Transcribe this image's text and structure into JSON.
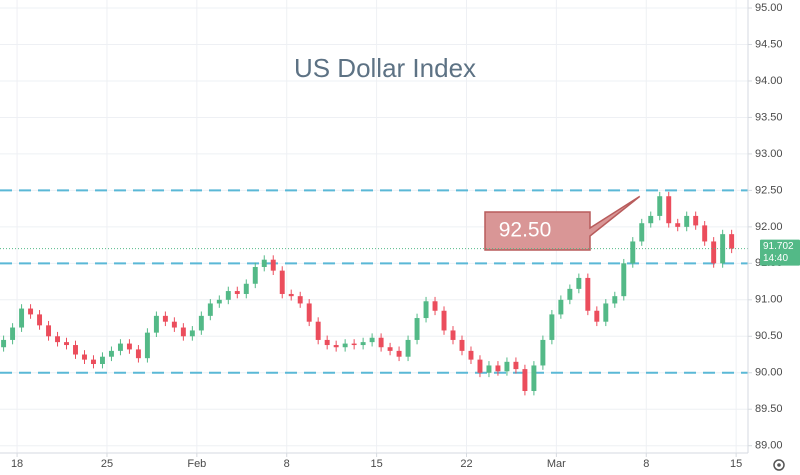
{
  "chart_data": {
    "type": "candlestick",
    "title": "US Dollar Index",
    "x": [
      -0.75,
      -0.25,
      0.25,
      0.75,
      1.25,
      1.75,
      2.25,
      2.75,
      3.25,
      3.75,
      4.25,
      4.75,
      5.25,
      5.75,
      6.25,
      6.75,
      7.25,
      7.75,
      8.25,
      8.75,
      9.25,
      9.75,
      10.25,
      10.75,
      11.25,
      11.75,
      12.25,
      12.75,
      13.25,
      13.75,
      14.25,
      14.75,
      15.25,
      15.75,
      16.25,
      16.75,
      17.25,
      17.75,
      18.25,
      18.75,
      19.25,
      19.75,
      20.25,
      20.75,
      21.25,
      21.75,
      22.25,
      22.75,
      23.25,
      23.75,
      24.25,
      24.75,
      25.25,
      25.75,
      26.25,
      26.75,
      27.25,
      27.75,
      28.25,
      28.75,
      29.25,
      29.75,
      30.25,
      30.75,
      31.25,
      31.75,
      32.25,
      32.75,
      33.25,
      33.75,
      34.25,
      34.75,
      35.25,
      35.75,
      36.25,
      36.75,
      37.25,
      37.75,
      38.25,
      38.75,
      39.25,
      39.75
    ],
    "open": [
      90.35,
      90.45,
      90.62,
      90.88,
      90.8,
      90.65,
      90.5,
      90.42,
      90.38,
      90.25,
      90.18,
      90.12,
      90.22,
      90.3,
      90.4,
      90.32,
      90.2,
      90.55,
      90.78,
      90.7,
      90.62,
      90.5,
      90.58,
      90.78,
      90.95,
      91.0,
      91.12,
      91.08,
      91.22,
      91.45,
      91.55,
      91.4,
      91.08,
      91.05,
      90.95,
      90.7,
      90.45,
      90.38,
      90.35,
      90.4,
      90.38,
      90.42,
      90.48,
      90.35,
      90.3,
      90.22,
      90.45,
      90.75,
      90.98,
      90.85,
      90.58,
      90.45,
      90.3,
      90.18,
      90.0,
      90.1,
      90.02,
      90.15,
      90.05,
      89.75,
      90.1,
      90.45,
      90.8,
      91.0,
      91.15,
      91.3,
      90.85,
      90.7,
      90.95,
      91.05,
      91.5,
      91.8,
      92.05,
      92.15,
      92.42,
      92.05,
      92.0,
      92.15,
      92.02,
      91.8,
      91.5,
      91.9
    ],
    "high": [
      90.51,
      90.68,
      90.94,
      90.94,
      90.86,
      90.71,
      90.56,
      90.48,
      90.44,
      90.31,
      90.24,
      90.28,
      90.36,
      90.46,
      90.46,
      90.38,
      90.61,
      90.84,
      90.84,
      90.76,
      90.68,
      90.64,
      90.84,
      91.01,
      91.06,
      91.18,
      91.18,
      91.28,
      91.51,
      91.61,
      91.61,
      91.46,
      91.14,
      91.11,
      91.01,
      90.76,
      90.51,
      90.44,
      90.46,
      90.46,
      90.48,
      90.54,
      90.54,
      90.41,
      90.36,
      90.51,
      90.81,
      91.04,
      91.04,
      90.91,
      90.64,
      90.51,
      90.36,
      90.24,
      90.16,
      90.16,
      90.21,
      90.21,
      90.11,
      90.16,
      90.51,
      90.86,
      91.06,
      91.21,
      91.36,
      91.36,
      90.91,
      91.01,
      91.11,
      91.56,
      91.86,
      92.11,
      92.21,
      92.48,
      92.48,
      92.11,
      92.21,
      92.21,
      92.08,
      91.86,
      91.96,
      91.96
    ],
    "low": [
      90.29,
      90.39,
      90.56,
      90.74,
      90.59,
      90.44,
      90.36,
      90.32,
      90.19,
      90.12,
      90.06,
      90.06,
      90.16,
      90.24,
      90.26,
      90.14,
      90.14,
      90.49,
      90.64,
      90.56,
      90.44,
      90.44,
      90.52,
      90.72,
      90.89,
      90.94,
      91.02,
      91.02,
      91.16,
      91.39,
      91.34,
      91.02,
      90.99,
      90.89,
      90.64,
      90.39,
      90.32,
      90.29,
      90.29,
      90.32,
      90.32,
      90.36,
      90.29,
      90.24,
      90.16,
      90.16,
      90.39,
      90.69,
      90.79,
      90.52,
      90.39,
      90.24,
      90.12,
      89.94,
      89.94,
      89.96,
      89.96,
      89.99,
      89.69,
      89.69,
      90.04,
      90.39,
      90.74,
      90.94,
      91.09,
      90.79,
      90.64,
      90.64,
      90.89,
      90.99,
      91.44,
      91.74,
      91.99,
      92.09,
      91.99,
      91.94,
      91.94,
      91.96,
      91.74,
      91.44,
      91.44,
      91.64
    ],
    "close": [
      90.45,
      90.62,
      90.88,
      90.8,
      90.65,
      90.5,
      90.42,
      90.38,
      90.25,
      90.18,
      90.12,
      90.22,
      90.3,
      90.4,
      90.32,
      90.2,
      90.55,
      90.78,
      90.7,
      90.62,
      90.5,
      90.58,
      90.78,
      90.95,
      91.0,
      91.12,
      91.08,
      91.22,
      91.45,
      91.55,
      91.4,
      91.08,
      91.05,
      90.95,
      90.7,
      90.45,
      90.38,
      90.35,
      90.4,
      90.38,
      90.42,
      90.48,
      90.35,
      90.3,
      90.22,
      90.45,
      90.75,
      90.98,
      90.85,
      90.58,
      90.45,
      90.3,
      90.18,
      90.0,
      90.1,
      90.02,
      90.15,
      90.05,
      89.75,
      90.1,
      90.45,
      90.8,
      91.0,
      91.15,
      91.3,
      90.85,
      90.7,
      90.95,
      91.05,
      91.5,
      91.8,
      92.05,
      92.15,
      92.42,
      92.05,
      92.0,
      92.15,
      92.02,
      91.8,
      91.5,
      91.9,
      91.702
    ],
    "up_color": "#53b987",
    "down_color": "#eb4d5c",
    "xlim": [
      -0.95,
      40.66
    ],
    "xticks": [
      {
        "value": 0,
        "label": "18"
      },
      {
        "value": 5,
        "label": "25"
      },
      {
        "value": 10,
        "label": "Feb"
      },
      {
        "value": 15,
        "label": "8"
      },
      {
        "value": 20,
        "label": "15"
      },
      {
        "value": 25,
        "label": "22"
      },
      {
        "value": 30,
        "label": "Mar"
      },
      {
        "value": 35,
        "label": "8"
      },
      {
        "value": 40,
        "label": "15"
      }
    ],
    "ylim": [
      88.9,
      95.11
    ],
    "yticks": [
      {
        "value": 89,
        "label": "89.00"
      },
      {
        "value": 89.5,
        "label": "89.50"
      },
      {
        "value": 90,
        "label": "90.00"
      },
      {
        "value": 90.5,
        "label": "90.50"
      },
      {
        "value": 91,
        "label": "91.00"
      },
      {
        "value": 91.5,
        "label": "91.50"
      },
      {
        "value": 92,
        "label": "92.00"
      },
      {
        "value": 92.5,
        "label": "92.50"
      },
      {
        "value": 93,
        "label": "93.00"
      },
      {
        "value": 93.5,
        "label": "93.50"
      },
      {
        "value": 94,
        "label": "94.00"
      },
      {
        "value": 94.5,
        "label": "94.50"
      },
      {
        "value": 95,
        "label": "95.00"
      }
    ],
    "grid": true,
    "levels": [
      92.5,
      91.5,
      90.0
    ],
    "level_color": "#5ab8d6",
    "callout": {
      "value": 92.5,
      "label": "92.50"
    },
    "last_price": 91.702,
    "countdown": "14:40"
  }
}
